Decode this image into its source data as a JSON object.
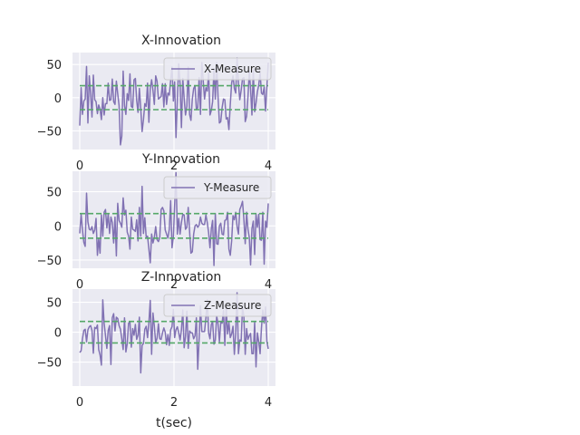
{
  "chart_data": [
    {
      "type": "line",
      "title": "X-Innovation",
      "xlim": [
        0,
        4
      ],
      "ylim": [
        -78,
        68
      ],
      "xticks": [
        "0",
        "2",
        "4"
      ],
      "yticks": [
        "50",
        "0",
        "−50"
      ],
      "ytick_values": [
        50,
        0,
        -50
      ],
      "series": [
        {
          "name": "X-Measure",
          "color": "#8172b3",
          "style": "solid",
          "seed": 11,
          "spread": 26,
          "extremes": [
            [
              2.05,
              -60
            ],
            [
              0.9,
              -58
            ],
            [
              3.35,
              60
            ],
            [
              0.15,
              47
            ]
          ]
        },
        {
          "name": "",
          "color": "#55a868",
          "style": "dashed",
          "x": [
            0,
            4
          ],
          "y": [
            18,
            18
          ]
        },
        {
          "name": "",
          "color": "#55a868",
          "style": "dashed",
          "x": [
            0,
            4
          ],
          "y": [
            -18,
            -18
          ]
        }
      ],
      "legend": "upper right",
      "grid": true
    },
    {
      "type": "line",
      "title": "Y-Innovation",
      "xlim": [
        0,
        4
      ],
      "ylim": [
        -62,
        80
      ],
      "xticks": [
        "0",
        "2",
        "4"
      ],
      "yticks": [
        "50",
        "0",
        "−50"
      ],
      "ytick_values": [
        50,
        0,
        -50
      ],
      "series": [
        {
          "name": "Y-Measure",
          "color": "#8172b3",
          "style": "solid",
          "seed": 23,
          "spread": 24,
          "extremes": [
            [
              2.05,
              78
            ],
            [
              2.85,
              -58
            ],
            [
              3.9,
              -56
            ],
            [
              0.15,
              48
            ]
          ]
        },
        {
          "name": "",
          "color": "#55a868",
          "style": "dashed",
          "x": [
            0,
            4
          ],
          "y": [
            18,
            18
          ]
        },
        {
          "name": "",
          "color": "#55a868",
          "style": "dashed",
          "x": [
            0,
            4
          ],
          "y": [
            -18,
            -18
          ]
        }
      ],
      "legend": "upper right",
      "grid": true
    },
    {
      "type": "line",
      "title": "Z-Innovation",
      "xlabel": "t(sec)",
      "xlim": [
        0,
        4
      ],
      "ylim": [
        -90,
        72
      ],
      "xticks": [
        "0",
        "2",
        "4"
      ],
      "yticks": [
        "50",
        "0",
        "−50"
      ],
      "ytick_values": [
        50,
        0,
        -50
      ],
      "series": [
        {
          "name": "Z-Measure",
          "color": "#8172b3",
          "style": "solid",
          "seed": 37,
          "spread": 24,
          "extremes": [
            [
              1.3,
              -68
            ],
            [
              3.35,
              66
            ],
            [
              0.45,
              -55
            ],
            [
              2.5,
              -62
            ]
          ]
        },
        {
          "name": "",
          "color": "#55a868",
          "style": "dashed",
          "x": [
            0,
            4
          ],
          "y": [
            18,
            18
          ]
        },
        {
          "name": "",
          "color": "#55a868",
          "style": "dashed",
          "x": [
            0,
            4
          ],
          "y": [
            -18,
            -18
          ]
        }
      ],
      "legend": "upper right",
      "grid": true
    }
  ]
}
